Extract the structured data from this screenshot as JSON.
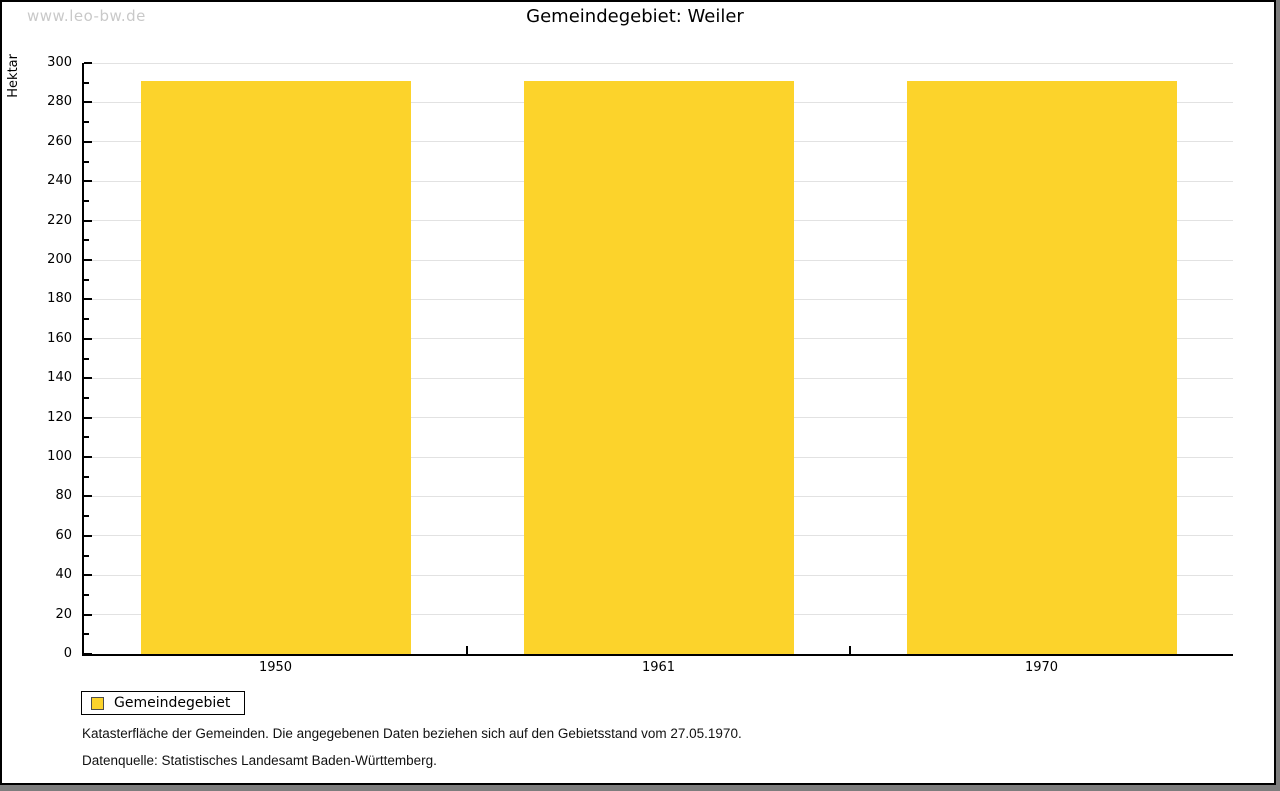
{
  "watermark": "www.leo-bw.de",
  "chart_data": {
    "type": "bar",
    "title": "Gemeindegebiet: Weiler",
    "xlabel": "",
    "ylabel": "Hektar",
    "categories": [
      "1950",
      "1961",
      "1970"
    ],
    "series": [
      {
        "name": "Gemeindegebiet",
        "values": [
          291,
          291,
          291
        ]
      }
    ],
    "ylim": [
      0,
      300
    ],
    "y_major_step": 20,
    "y_minor_step": 10,
    "grid": "horizontal-major-only",
    "legend_position": "bottom-left"
  },
  "footer": {
    "line1": "Katasterfläche der Gemeinden. Die angegebenen Daten beziehen sich auf den Gebietsstand vom 27.05.1970.",
    "line2": "Datenquelle: Statistisches Landesamt Baden-Württemberg."
  },
  "colors": {
    "bar_fill": "#fcd32b",
    "legend_swatch_border": "#4d4d4d",
    "gridline": "#e2e2e2",
    "watermark_text": "#c9c9c9",
    "axis": "#000000",
    "page_background": "#ffffff",
    "outer_background": "#7d7d7d"
  }
}
